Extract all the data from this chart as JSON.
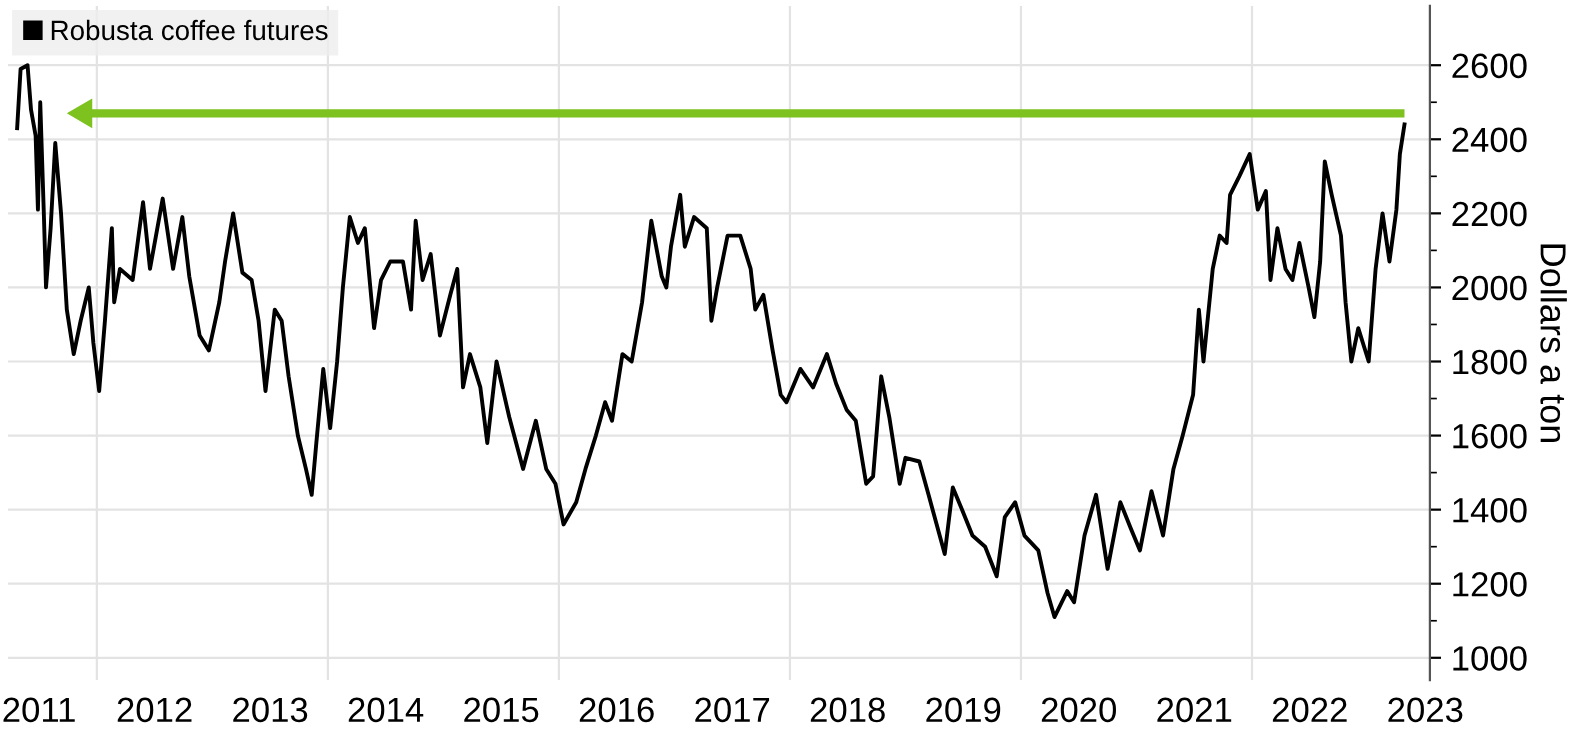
{
  "chart_data": {
    "type": "line",
    "ylabel": "Dollars a ton",
    "legend": "top left",
    "grid": true,
    "line_style": "solid",
    "marker": "none",
    "xlim": [
      2011.23,
      2023.54
    ],
    "ylim": [
      940,
      2760
    ],
    "xticks": [
      {
        "value": 2011.5,
        "label": "2011"
      },
      {
        "value": 2012.5,
        "label": "2012"
      },
      {
        "value": 2013.5,
        "label": "2013"
      },
      {
        "value": 2014.5,
        "label": "2014"
      },
      {
        "value": 2015.5,
        "label": "2015"
      },
      {
        "value": 2016.5,
        "label": "2016"
      },
      {
        "value": 2017.5,
        "label": "2017"
      },
      {
        "value": 2018.5,
        "label": "2018"
      },
      {
        "value": 2019.5,
        "label": "2019"
      },
      {
        "value": 2020.5,
        "label": "2020"
      },
      {
        "value": 2021.5,
        "label": "2021"
      },
      {
        "value": 2022.5,
        "label": "2022"
      },
      {
        "value": 2023.5,
        "label": "2023"
      },
      {
        "value": 2012,
        "label": null
      },
      {
        "value": 2014,
        "label": null
      },
      {
        "value": 2016,
        "label": null
      },
      {
        "value": 2018,
        "label": null
      },
      {
        "value": 2020,
        "label": null
      },
      {
        "value": 2022,
        "label": null
      }
    ],
    "yticks": [
      1000,
      1200,
      1400,
      1600,
      1800,
      2000,
      2200,
      2400,
      2600,
      {
        "value": 1100,
        "label": null
      },
      {
        "value": 1300,
        "label": null
      },
      {
        "value": 1500,
        "label": null
      },
      {
        "value": 1700,
        "label": null
      },
      {
        "value": 1900,
        "label": null
      },
      {
        "value": 2100,
        "label": null
      },
      {
        "value": 2300,
        "label": null
      },
      {
        "value": 2500,
        "label": null
      }
    ],
    "ref_lines": [
      {
        "axis": "y",
        "value": 2470,
        "color": "#7dc21e"
      }
    ],
    "series": [
      {
        "name": "Robusta coffee futures",
        "color": "#000000",
        "x": [
          2011.31,
          2011.34,
          2011.4,
          2011.43,
          2011.47,
          2011.49,
          2011.51,
          2011.54,
          2011.56,
          2011.6,
          2011.64,
          2011.69,
          2011.74,
          2011.8,
          2011.86,
          2011.93,
          2011.97,
          2012.02,
          2012.07,
          2012.13,
          2012.15,
          2012.2,
          2012.31,
          2012.4,
          2012.46,
          2012.57,
          2012.66,
          2012.74,
          2012.8,
          2012.89,
          2012.97,
          2013.06,
          2013.11,
          2013.18,
          2013.26,
          2013.34,
          2013.4,
          2013.46,
          2013.54,
          2013.6,
          2013.66,
          2013.74,
          2013.81,
          2013.86,
          2013.9,
          2013.96,
          2014.02,
          2014.08,
          2014.13,
          2014.19,
          2014.26,
          2014.32,
          2014.4,
          2014.46,
          2014.54,
          2014.65,
          2014.72,
          2014.76,
          2014.82,
          2014.89,
          2014.97,
          2015.06,
          2015.12,
          2015.17,
          2015.23,
          2015.32,
          2015.38,
          2015.46,
          2015.57,
          2015.69,
          2015.8,
          2015.89,
          2015.97,
          2016.04,
          2016.15,
          2016.23,
          2016.32,
          2016.4,
          2016.46,
          2016.55,
          2016.63,
          2016.72,
          2016.8,
          2016.89,
          2016.93,
          2016.97,
          2017.05,
          2017.09,
          2017.17,
          2017.28,
          2017.32,
          2017.37,
          2017.46,
          2017.57,
          2017.66,
          2017.7,
          2017.77,
          2017.85,
          2017.92,
          2017.97,
          2018.09,
          2018.2,
          2018.32,
          2018.4,
          2018.49,
          2018.57,
          2018.66,
          2018.72,
          2018.79,
          2018.86,
          2018.95,
          2019.0,
          2019.12,
          2019.2,
          2019.34,
          2019.41,
          2019.49,
          2019.58,
          2019.69,
          2019.79,
          2019.86,
          2019.95,
          2020.03,
          2020.15,
          2020.23,
          2020.29,
          2020.4,
          2020.46,
          2020.55,
          2020.65,
          2020.75,
          2020.86,
          2020.95,
          2021.03,
          2021.13,
          2021.23,
          2021.32,
          2021.4,
          2021.49,
          2021.54,
          2021.58,
          2021.66,
          2021.72,
          2021.78,
          2021.81,
          2021.89,
          2021.98,
          2022.05,
          2022.12,
          2022.16,
          2022.22,
          2022.29,
          2022.35,
          2022.41,
          2022.49,
          2022.54,
          2022.59,
          2022.63,
          2022.69,
          2022.77,
          2022.81,
          2022.86,
          2022.92,
          2023.01,
          2023.07,
          2023.13,
          2023.19,
          2023.25,
          2023.28,
          2023.32
        ],
        "values": [
          2430,
          2590,
          2600,
          2480,
          2410,
          2210,
          2500,
          2210,
          2000,
          2160,
          2390,
          2200,
          1940,
          1820,
          1910,
          2000,
          1850,
          1720,
          1910,
          2160,
          1960,
          2050,
          2020,
          2230,
          2050,
          2240,
          2050,
          2190,
          2030,
          1870,
          1830,
          1960,
          2070,
          2200,
          2040,
          2020,
          1910,
          1720,
          1940,
          1910,
          1760,
          1600,
          1510,
          1440,
          1580,
          1780,
          1620,
          1800,
          2000,
          2190,
          2120,
          2160,
          1890,
          2020,
          2070,
          2070,
          1940,
          2180,
          2020,
          2090,
          1870,
          1980,
          2050,
          1730,
          1820,
          1730,
          1580,
          1800,
          1650,
          1510,
          1640,
          1510,
          1470,
          1360,
          1420,
          1510,
          1600,
          1690,
          1640,
          1820,
          1800,
          1960,
          2180,
          2030,
          2000,
          2110,
          2250,
          2110,
          2190,
          2160,
          1910,
          2000,
          2140,
          2140,
          2050,
          1940,
          1980,
          1830,
          1710,
          1690,
          1780,
          1730,
          1820,
          1740,
          1670,
          1640,
          1470,
          1490,
          1760,
          1650,
          1470,
          1540,
          1530,
          1440,
          1280,
          1460,
          1400,
          1330,
          1300,
          1220,
          1380,
          1420,
          1330,
          1290,
          1175,
          1110,
          1180,
          1150,
          1330,
          1440,
          1240,
          1420,
          1350,
          1290,
          1450,
          1330,
          1510,
          1600,
          1710,
          1940,
          1800,
          2050,
          2140,
          2120,
          2250,
          2300,
          2360,
          2210,
          2260,
          2020,
          2160,
          2050,
          2020,
          2120,
          2000,
          1920,
          2070,
          2340,
          2250,
          2140,
          1960,
          1800,
          1890,
          1800,
          2050,
          2200,
          2070,
          2210,
          2360,
          2440
        ]
      }
    ]
  }
}
